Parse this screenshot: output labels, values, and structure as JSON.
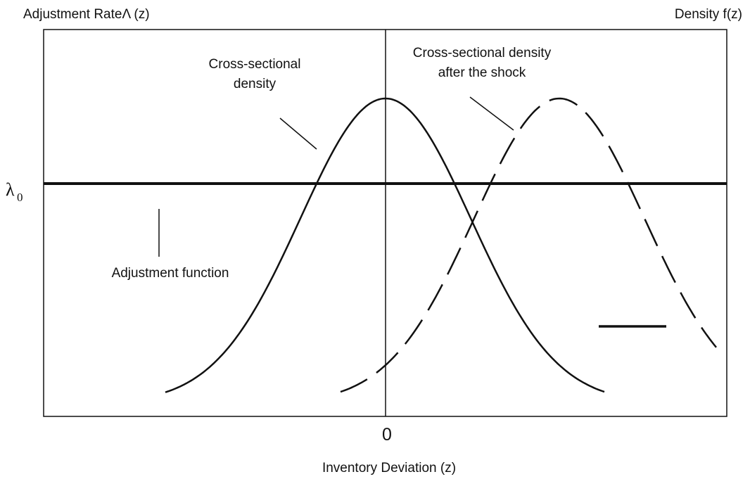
{
  "header": {
    "left_axis_label": "Adjustment RateΛ  (z)",
    "right_axis_label": "Density f(z)"
  },
  "x_axis": {
    "label": "Inventory Deviation (z)",
    "origin_label": "0"
  },
  "y_marker": {
    "symbol": "λ",
    "subscript": "0"
  },
  "annotations": {
    "density": [
      "Cross-sectional",
      "density"
    ],
    "shifted_density": [
      "Cross-sectional density",
      "after the shock"
    ],
    "adjustment": "Adjustment function"
  }
}
